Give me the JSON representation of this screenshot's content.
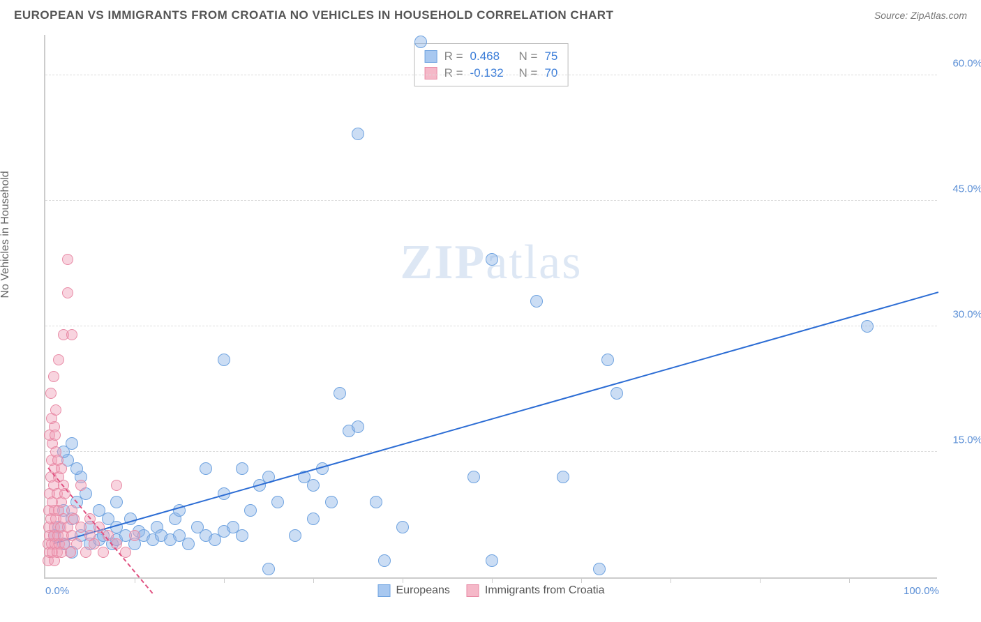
{
  "header": {
    "title": "EUROPEAN VS IMMIGRANTS FROM CROATIA NO VEHICLES IN HOUSEHOLD CORRELATION CHART",
    "source": "Source: ZipAtlas.com"
  },
  "chart": {
    "type": "scatter",
    "ylabel": "No Vehicles in Household",
    "watermark": "ZIPatlas",
    "background_color": "#ffffff",
    "grid_color": "#dddddd",
    "axis_color": "#cccccc",
    "xlim": [
      0,
      100
    ],
    "ylim": [
      0,
      65
    ],
    "yticks": [
      {
        "value": 15.0,
        "label": "15.0%"
      },
      {
        "value": 30.0,
        "label": "30.0%"
      },
      {
        "value": 45.0,
        "label": "45.0%"
      },
      {
        "value": 60.0,
        "label": "60.0%"
      }
    ],
    "xticks_minor": [
      10,
      20,
      30,
      40,
      50,
      60,
      70,
      80,
      90
    ],
    "xlabels": [
      {
        "value": 0,
        "label": "0.0%"
      },
      {
        "value": 100,
        "label": "100.0%"
      }
    ],
    "stats": [
      {
        "color": "#a8c8f0",
        "border": "#6fa3e0",
        "r_label": "R =",
        "r": "0.468",
        "n_label": "N =",
        "n": "75"
      },
      {
        "color": "#f5b8c8",
        "border": "#e88aa5",
        "r_label": "R =",
        "r": "-0.132",
        "n_label": "N =",
        "n": "70"
      }
    ],
    "legend": [
      {
        "color": "#a8c8f0",
        "border": "#6fa3e0",
        "label": "Europeans"
      },
      {
        "color": "#f5b8c8",
        "border": "#e88aa5",
        "label": "Immigrants from Croatia"
      }
    ],
    "series": [
      {
        "name": "europeans",
        "fill": "rgba(140,180,230,0.45)",
        "stroke": "#6fa3e0",
        "radius": 9,
        "points": [
          [
            1,
            5
          ],
          [
            1.5,
            6
          ],
          [
            2,
            4
          ],
          [
            2,
            8
          ],
          [
            2.5,
            14
          ],
          [
            3,
            3
          ],
          [
            3,
            7
          ],
          [
            3.5,
            9
          ],
          [
            4,
            5
          ],
          [
            4,
            12
          ],
          [
            5,
            6
          ],
          [
            5,
            4
          ],
          [
            6,
            4.5
          ],
          [
            6.5,
            5
          ],
          [
            7,
            7
          ],
          [
            7.5,
            4
          ],
          [
            8,
            6
          ],
          [
            8,
            4.5
          ],
          [
            9,
            5
          ],
          [
            9.5,
            7
          ],
          [
            10,
            4
          ],
          [
            10.5,
            5.5
          ],
          [
            11,
            5
          ],
          [
            12,
            4.5
          ],
          [
            12.5,
            6
          ],
          [
            13,
            5
          ],
          [
            14,
            4.5
          ],
          [
            14.5,
            7
          ],
          [
            15,
            5
          ],
          [
            16,
            4
          ],
          [
            17,
            6
          ],
          [
            18,
            5
          ],
          [
            18,
            13
          ],
          [
            19,
            4.5
          ],
          [
            20,
            5.5
          ],
          [
            20,
            26
          ],
          [
            21,
            6
          ],
          [
            22,
            5
          ],
          [
            23,
            8
          ],
          [
            24,
            11
          ],
          [
            25,
            12
          ],
          [
            25,
            1
          ],
          [
            26,
            9
          ],
          [
            28,
            5
          ],
          [
            29,
            12
          ],
          [
            30,
            7
          ],
          [
            30,
            11
          ],
          [
            31,
            13
          ],
          [
            32,
            9
          ],
          [
            33,
            22
          ],
          [
            34,
            17.5
          ],
          [
            35,
            18
          ],
          [
            35,
            53
          ],
          [
            37,
            9
          ],
          [
            38,
            2
          ],
          [
            40,
            6
          ],
          [
            42,
            64
          ],
          [
            48,
            12
          ],
          [
            50,
            38
          ],
          [
            50,
            2
          ],
          [
            55,
            33
          ],
          [
            58,
            12
          ],
          [
            62,
            1
          ],
          [
            63,
            26
          ],
          [
            64,
            22
          ],
          [
            92,
            30
          ],
          [
            2,
            15
          ],
          [
            3,
            16
          ],
          [
            3.5,
            13
          ],
          [
            4.5,
            10
          ],
          [
            6,
            8
          ],
          [
            8,
            9
          ],
          [
            15,
            8
          ],
          [
            20,
            10
          ],
          [
            22,
            13
          ]
        ],
        "trendline": {
          "x1": 1,
          "y1": 4,
          "x2": 100,
          "y2": 34,
          "color": "#2b6cd4",
          "width": 2
        }
      },
      {
        "name": "croatia",
        "fill": "rgba(240,160,185,0.45)",
        "stroke": "#e88aa5",
        "radius": 8,
        "points": [
          [
            0.3,
            2
          ],
          [
            0.3,
            4
          ],
          [
            0.4,
            6
          ],
          [
            0.4,
            8
          ],
          [
            0.5,
            3
          ],
          [
            0.5,
            5
          ],
          [
            0.5,
            10
          ],
          [
            0.6,
            7
          ],
          [
            0.6,
            12
          ],
          [
            0.7,
            4
          ],
          [
            0.7,
            14
          ],
          [
            0.8,
            3
          ],
          [
            0.8,
            16
          ],
          [
            0.8,
            9
          ],
          [
            0.9,
            5
          ],
          [
            0.9,
            11
          ],
          [
            1,
            2
          ],
          [
            1,
            6
          ],
          [
            1,
            8
          ],
          [
            1,
            13
          ],
          [
            1,
            18
          ],
          [
            1.1,
            4
          ],
          [
            1.2,
            7
          ],
          [
            1.2,
            15
          ],
          [
            1.3,
            3
          ],
          [
            1.3,
            10
          ],
          [
            1.4,
            5
          ],
          [
            1.5,
            26
          ],
          [
            1.5,
            8
          ],
          [
            1.5,
            12
          ],
          [
            1.6,
            4
          ],
          [
            1.7,
            6
          ],
          [
            1.8,
            3
          ],
          [
            1.8,
            9
          ],
          [
            2,
            5
          ],
          [
            2,
            7
          ],
          [
            2,
            11
          ],
          [
            2,
            29
          ],
          [
            2.2,
            4
          ],
          [
            2.5,
            6
          ],
          [
            2.5,
            34
          ],
          [
            2.5,
            38
          ],
          [
            2.8,
            3
          ],
          [
            3,
            5
          ],
          [
            3,
            8
          ],
          [
            3,
            29
          ],
          [
            3.5,
            4
          ],
          [
            4,
            6
          ],
          [
            4,
            11
          ],
          [
            4.5,
            3
          ],
          [
            5,
            5
          ],
          [
            5,
            7
          ],
          [
            5.5,
            4
          ],
          [
            6,
            6
          ],
          [
            6.5,
            3
          ],
          [
            7,
            5
          ],
          [
            8,
            4
          ],
          [
            8,
            11
          ],
          [
            9,
            3
          ],
          [
            10,
            5
          ],
          [
            0.5,
            17
          ],
          [
            0.7,
            19
          ],
          [
            1.2,
            20
          ],
          [
            0.6,
            22
          ],
          [
            0.9,
            24
          ],
          [
            1.1,
            17
          ],
          [
            1.4,
            14
          ],
          [
            1.8,
            13
          ],
          [
            2.2,
            10
          ],
          [
            3.2,
            7
          ]
        ],
        "trendline": {
          "x1": 0.3,
          "y1": 13,
          "x2": 12,
          "y2": -2,
          "color": "#e05080",
          "width": 2,
          "dash": true
        }
      }
    ]
  }
}
